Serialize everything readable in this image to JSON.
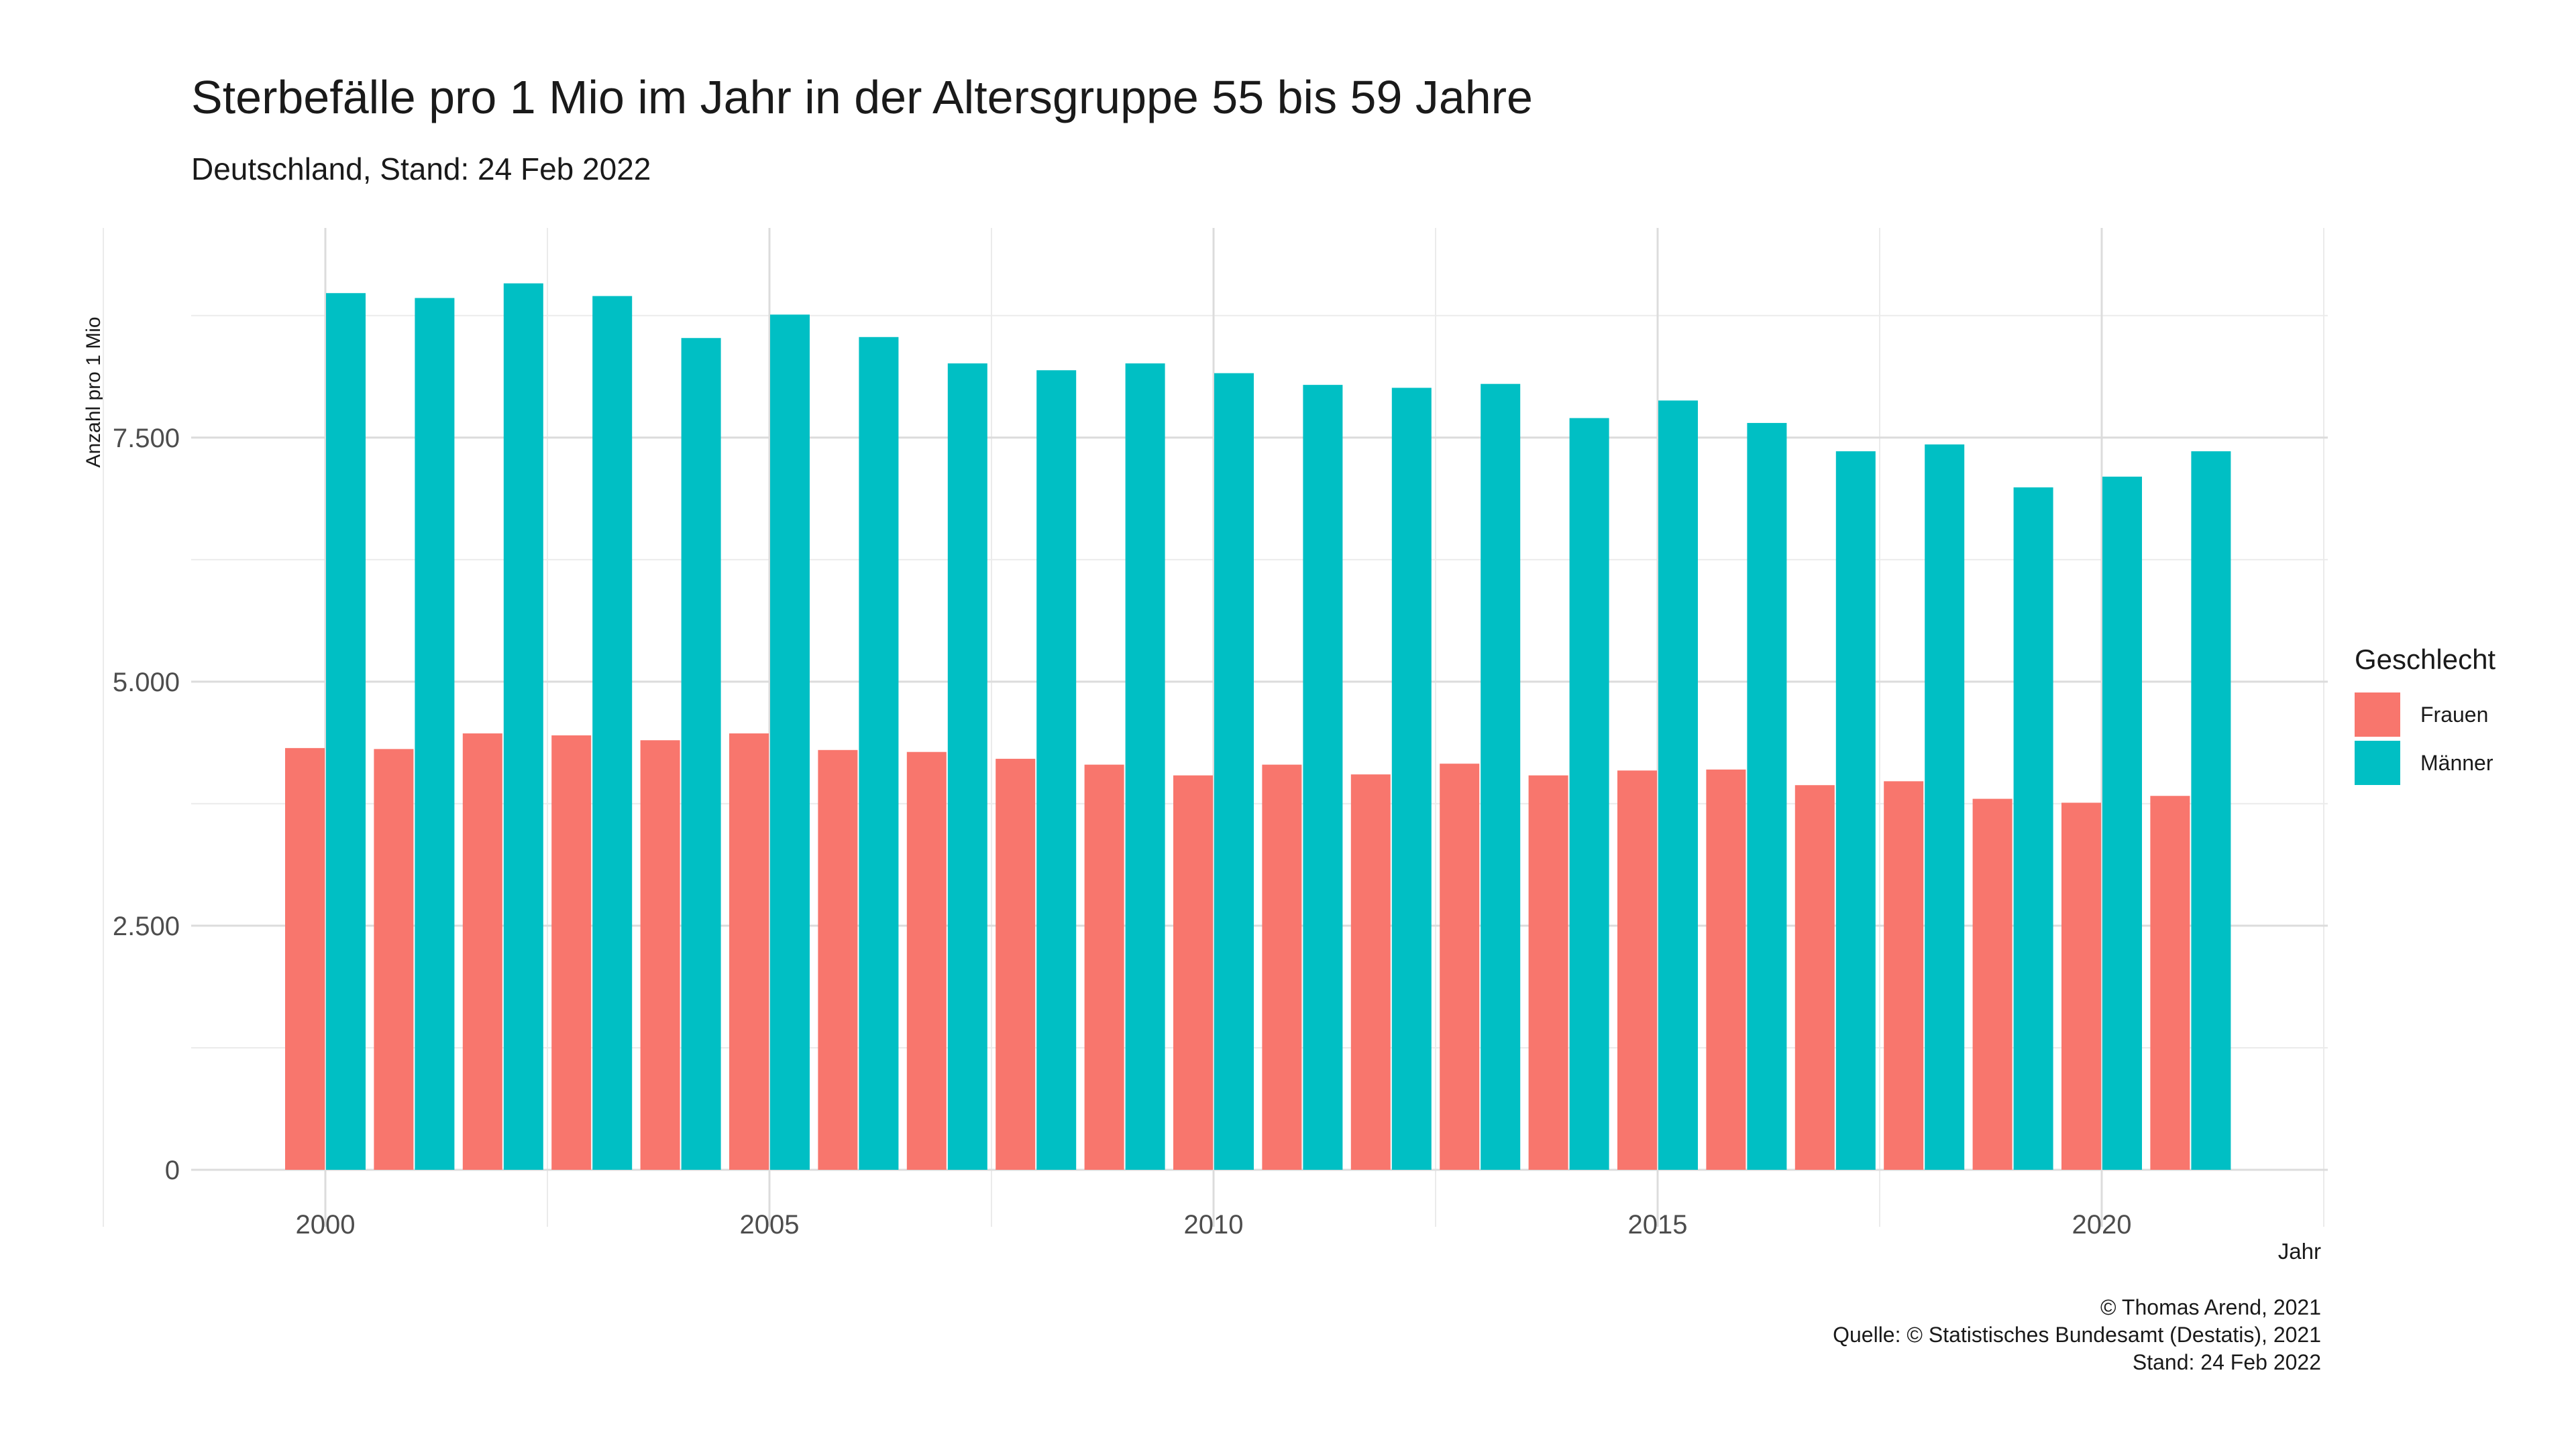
{
  "chart_data": {
    "type": "bar",
    "title": "Sterbefälle pro 1 Mio im Jahr in der Altersgruppe 55 bis 59 Jahre",
    "subtitle": "Deutschland, Stand: 24 Feb 2022",
    "xlabel": "Jahr",
    "ylabel": "Anzahl pro 1 Mio",
    "categories": [
      2000,
      2001,
      2002,
      2003,
      2004,
      2005,
      2006,
      2007,
      2008,
      2009,
      2010,
      2011,
      2012,
      2013,
      2014,
      2015,
      2016,
      2017,
      2018,
      2019,
      2020,
      2021
    ],
    "series": [
      {
        "name": "Frauen",
        "color": "#F8766D",
        "values": [
          4320,
          4310,
          4470,
          4450,
          4400,
          4470,
          4300,
          4280,
          4210,
          4150,
          4040,
          4150,
          4050,
          4160,
          4040,
          4090,
          4100,
          3940,
          3980,
          3800,
          3760,
          3830
        ]
      },
      {
        "name": "Männer",
        "color": "#00BFC4",
        "values": [
          8980,
          8930,
          9080,
          8950,
          8520,
          8760,
          8530,
          8260,
          8190,
          8260,
          8160,
          8040,
          8010,
          8050,
          7700,
          7880,
          7650,
          7360,
          7430,
          6990,
          7100,
          7360
        ]
      }
    ],
    "x_ticks": [
      "2000",
      "2005",
      "2010",
      "2015",
      "2020"
    ],
    "y_ticks": [
      "0",
      "2.500",
      "5.000",
      "7.500"
    ],
    "ylim": [
      0,
      9600
    ],
    "grid": true,
    "legend": {
      "title": "Geschlecht",
      "position": "right"
    }
  },
  "caption": {
    "line1": "© Thomas Arend, 2021",
    "line2": "Quelle: © Statistisches Bundesamt (Destatis), 2021",
    "line3": "Stand: 24 Feb 2022"
  }
}
